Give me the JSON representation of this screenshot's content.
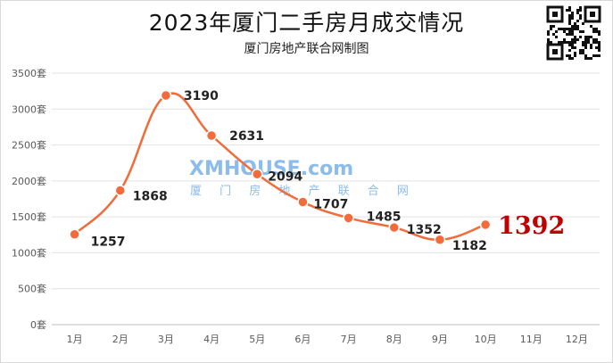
{
  "header": {
    "title": "2023年厦门二手房月成交情况",
    "subtitle": "厦门房地产联合网制图"
  },
  "watermark": {
    "logo_text": "XMHOUSE.com",
    "tagline": "厦 门 房 地 产 联 合 网"
  },
  "chart_data": {
    "type": "line",
    "title": "2023年厦门二手房月成交情况",
    "subtitle": "厦门房地产联合网制图",
    "categories": [
      "1月",
      "2月",
      "3月",
      "4月",
      "5月",
      "6月",
      "7月",
      "8月",
      "9月",
      "10月",
      "11月",
      "12月"
    ],
    "series": [
      {
        "values": [
          1257,
          1868,
          3190,
          2631,
          2094,
          1707,
          1485,
          1352,
          1182,
          1392,
          null,
          null
        ],
        "color": "#f26b3a"
      }
    ],
    "data_labels": [
      "1257",
      "1868",
      "3190",
      "2631",
      "2094",
      "1707",
      "1485",
      "1352",
      "1182",
      "1392"
    ],
    "highlight_index": 9,
    "highlight_color": "#c00000",
    "ylim": [
      0,
      3500
    ],
    "yticks": [
      0,
      500,
      1000,
      1500,
      2000,
      2500,
      3000,
      3500
    ],
    "ytick_labels": [
      "0套",
      "500套",
      "1000套",
      "1500套",
      "2000套",
      "2500套",
      "3000套",
      "3500套"
    ],
    "grid": true,
    "smooth": true,
    "legend": "none"
  }
}
